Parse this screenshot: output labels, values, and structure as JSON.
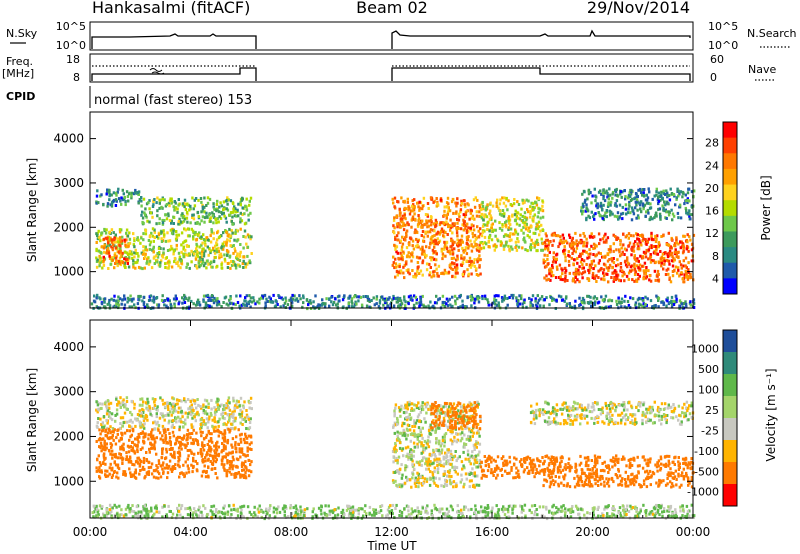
{
  "header": {
    "station": "Hankasalmi (fitACF)",
    "beam": "Beam 02",
    "date": "29/Nov/2014"
  },
  "top_panels": {
    "nsky_label": "N.Sky",
    "nsky_ticks": [
      "10^5",
      "10^0"
    ],
    "nsearch_label": "N.Search",
    "nsearch_ticks": [
      "10^5",
      "10^0"
    ],
    "freq_label": "Freq.",
    "freq_unit": "[MHz]",
    "freq_ticks": [
      "18",
      "8"
    ],
    "nave_label": "Nave",
    "nave_ticks": [
      "60",
      "0"
    ],
    "cpid_label": "CPID",
    "cpid_text": "normal (fast stereo) 153"
  },
  "x_axis": {
    "label": "Time UT",
    "ticks": [
      "00:00",
      "04:00",
      "08:00",
      "12:00",
      "16:00",
      "20:00",
      "00:00"
    ]
  },
  "power_colorbar": {
    "label": "Power [dB]",
    "ticks": [
      "28",
      "24",
      "20",
      "16",
      "12",
      "8",
      "4"
    ],
    "colors": [
      "#ff0000",
      "#ff4000",
      "#ff7800",
      "#ffa000",
      "#ffd21e",
      "#b4dc00",
      "#6ec84a",
      "#3c9a5c",
      "#2a8a82",
      "#1f5aaa",
      "#0000ff"
    ]
  },
  "velocity_colorbar": {
    "label": "Velocity [m s⁻¹]",
    "ticks": [
      "1000",
      "500",
      "100",
      "25",
      "-25",
      "-100",
      "-500",
      "-1000"
    ],
    "colors": [
      "#1f4e9a",
      "#2f8a7a",
      "#5fb84a",
      "#a4d46a",
      "#c8c8c0",
      "#ffb400",
      "#ff7a00",
      "#ff0000"
    ]
  },
  "chart_data": [
    {
      "type": "heatmap",
      "title": "Power",
      "xlabel": "Time UT",
      "ylabel": "Slant Range [km]",
      "xlim_hours": [
        0,
        24
      ],
      "ylim_km": [
        180,
        4600
      ],
      "y_ticks": [
        "1000",
        "2000",
        "3000",
        "4000"
      ],
      "data_gaps_hours": [
        [
          6.5,
          12.0
        ]
      ],
      "regions": [
        {
          "t0": 0.2,
          "t1": 6.4,
          "r0": 1100,
          "r1": 2000,
          "power_db": 17
        },
        {
          "t0": 0.5,
          "t1": 1.5,
          "r0": 1200,
          "r1": 1800,
          "power_db": 26
        },
        {
          "t0": 2.0,
          "t1": 6.4,
          "r0": 2100,
          "r1": 2700,
          "power_db": 14
        },
        {
          "t0": 0.2,
          "t1": 2.0,
          "r0": 2500,
          "r1": 2900,
          "power_db": 10
        },
        {
          "t0": 12.0,
          "t1": 15.5,
          "r0": 900,
          "r1": 2700,
          "power_db": 24
        },
        {
          "t0": 15.5,
          "t1": 18.0,
          "r0": 1500,
          "r1": 2700,
          "power_db": 18
        },
        {
          "t0": 18.0,
          "t1": 24.0,
          "r0": 800,
          "r1": 1900,
          "power_db": 26
        },
        {
          "t0": 19.5,
          "t1": 24.0,
          "r0": 2200,
          "r1": 2900,
          "power_db": 10
        },
        {
          "t0": 0.0,
          "t1": 24.0,
          "r0": 200,
          "r1": 500,
          "power_db": 9
        }
      ]
    },
    {
      "type": "heatmap",
      "title": "Velocity",
      "xlabel": "Time UT",
      "ylabel": "Slant Range [km]",
      "xlim_hours": [
        0,
        24
      ],
      "ylim_km": [
        180,
        4600
      ],
      "y_ticks": [
        "1000",
        "2000",
        "3000",
        "4000"
      ],
      "data_gaps_hours": [
        [
          6.5,
          12.0
        ]
      ],
      "regions": [
        {
          "t0": 0.2,
          "t1": 6.4,
          "r0": 2200,
          "r1": 2900,
          "velocity_ms": 0
        },
        {
          "t0": 0.2,
          "t1": 6.4,
          "r0": 1100,
          "r1": 2200,
          "velocity_ms": -200
        },
        {
          "t0": 12.0,
          "t1": 15.5,
          "r0": 900,
          "r1": 2800,
          "velocity_ms": 0
        },
        {
          "t0": 13.5,
          "t1": 15.5,
          "r0": 2200,
          "r1": 2800,
          "velocity_ms": -300
        },
        {
          "t0": 15.5,
          "t1": 18.5,
          "r0": 1100,
          "r1": 1600,
          "velocity_ms": -400
        },
        {
          "t0": 18.0,
          "t1": 24.0,
          "r0": 900,
          "r1": 1600,
          "velocity_ms": -250
        },
        {
          "t0": 17.5,
          "t1": 24.0,
          "r0": 2300,
          "r1": 2800,
          "velocity_ms": 0
        },
        {
          "t0": 0.0,
          "t1": 24.0,
          "r0": 200,
          "r1": 500,
          "velocity_ms": 60
        }
      ]
    }
  ]
}
